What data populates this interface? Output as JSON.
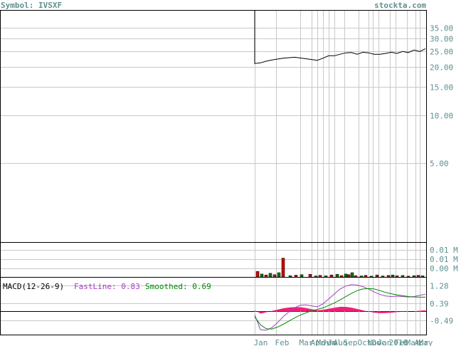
{
  "header": {
    "symbol_label": "Symbol: IVSXF",
    "site": "stockta.com"
  },
  "chart_data": [
    {
      "type": "line",
      "panel": "price",
      "title": "",
      "scale": "log",
      "y_ticks": [
        "35.00",
        "30.00",
        "25.00",
        "20.00",
        "15.00",
        "10.00",
        "5.00"
      ],
      "y_tick_values": [
        35,
        30,
        25,
        20,
        15,
        10,
        5
      ],
      "ylim": [
        1.6,
        45
      ],
      "x": [
        0,
        8,
        16,
        24,
        40,
        56,
        72,
        88,
        96,
        104,
        112,
        120,
        128,
        136,
        144,
        152,
        160,
        168,
        176,
        184,
        192,
        200,
        208,
        216,
        224,
        232,
        240
      ],
      "values": [
        21.0,
        21.2,
        21.7,
        22.1,
        22.7,
        23.0,
        22.5,
        22.0,
        22.7,
        23.5,
        23.5,
        24.0,
        24.5,
        24.6,
        24.0,
        24.7,
        24.5,
        24.0,
        24.0,
        24.3,
        24.7,
        24.3,
        25.0,
        24.6,
        25.5,
        25.0,
        26.0
      ],
      "series_color": "#000000"
    },
    {
      "type": "bar",
      "panel": "volume",
      "y_ticks": [
        "0.01 M",
        "0.01 M",
        "0.00 M"
      ],
      "ylim": [
        0,
        0.02
      ],
      "bars": [
        {
          "x": 4,
          "v": 0.0034,
          "color": "#cc0000"
        },
        {
          "x": 10,
          "v": 0.0018,
          "color": "#007700"
        },
        {
          "x": 16,
          "v": 0.0012,
          "color": "#cc0000"
        },
        {
          "x": 22,
          "v": 0.0022,
          "color": "#007700"
        },
        {
          "x": 28,
          "v": 0.0014,
          "color": "#cc0000"
        },
        {
          "x": 34,
          "v": 0.0026,
          "color": "#007700"
        },
        {
          "x": 40,
          "v": 0.0115,
          "color": "#cc0000"
        },
        {
          "x": 50,
          "v": 0.0008,
          "color": "#007700"
        },
        {
          "x": 58,
          "v": 0.0011,
          "color": "#cc0000"
        },
        {
          "x": 66,
          "v": 0.0014,
          "color": "#007700"
        },
        {
          "x": 78,
          "v": 0.0016,
          "color": "#cc0000"
        },
        {
          "x": 86,
          "v": 0.0006,
          "color": "#007700"
        },
        {
          "x": 92,
          "v": 0.001,
          "color": "#cc0000"
        },
        {
          "x": 100,
          "v": 0.0007,
          "color": "#007700"
        },
        {
          "x": 108,
          "v": 0.0012,
          "color": "#cc0000"
        },
        {
          "x": 116,
          "v": 0.0016,
          "color": "#007700"
        },
        {
          "x": 122,
          "v": 0.0008,
          "color": "#cc0000"
        },
        {
          "x": 128,
          "v": 0.0018,
          "color": "#007700"
        },
        {
          "x": 132,
          "v": 0.0014,
          "color": "#cc0000"
        },
        {
          "x": 137,
          "v": 0.0026,
          "color": "#007700"
        },
        {
          "x": 142,
          "v": 0.0008,
          "color": "#cc0000"
        },
        {
          "x": 150,
          "v": 0.0006,
          "color": "#007700"
        },
        {
          "x": 156,
          "v": 0.001,
          "color": "#cc0000"
        },
        {
          "x": 164,
          "v": 0.0005,
          "color": "#007700"
        },
        {
          "x": 172,
          "v": 0.0012,
          "color": "#cc0000"
        },
        {
          "x": 180,
          "v": 0.0006,
          "color": "#007700"
        },
        {
          "x": 188,
          "v": 0.0009,
          "color": "#cc0000"
        },
        {
          "x": 194,
          "v": 0.0012,
          "color": "#007700"
        },
        {
          "x": 200,
          "v": 0.0007,
          "color": "#cc0000"
        },
        {
          "x": 208,
          "v": 0.0009,
          "color": "#007700"
        },
        {
          "x": 216,
          "v": 0.0005,
          "color": "#cc0000"
        },
        {
          "x": 224,
          "v": 0.0008,
          "color": "#007700"
        },
        {
          "x": 230,
          "v": 0.001,
          "color": "#cc0000"
        },
        {
          "x": 236,
          "v": 0.0007,
          "color": "#007700"
        }
      ]
    },
    {
      "type": "line",
      "panel": "macd",
      "legend": {
        "label": "MACD(12-26-9)",
        "fast_label": "FastLine: 0.83",
        "smooth_label": "Smoothed: 0.69"
      },
      "y_ticks": [
        "1.28",
        "0.39",
        "-0.49"
      ],
      "y_tick_values": [
        1.28,
        0.39,
        -0.49
      ],
      "ylim": [
        -1.2,
        1.6
      ],
      "x": [
        0,
        8,
        16,
        24,
        32,
        40,
        48,
        56,
        64,
        72,
        80,
        88,
        96,
        104,
        112,
        120,
        128,
        136,
        144,
        152,
        160,
        168,
        176,
        184,
        192,
        200,
        208,
        216,
        224,
        232,
        240
      ],
      "fast": [
        -0.2,
        -0.95,
        -0.98,
        -0.85,
        -0.6,
        -0.3,
        -0.05,
        0.15,
        0.28,
        0.3,
        0.25,
        0.2,
        0.35,
        0.6,
        0.85,
        1.1,
        1.25,
        1.32,
        1.3,
        1.22,
        1.1,
        0.95,
        0.82,
        0.75,
        0.72,
        0.74,
        0.72,
        0.7,
        0.72,
        0.78,
        0.83
      ],
      "smooth": [
        -0.3,
        -0.7,
        -0.9,
        -0.92,
        -0.82,
        -0.68,
        -0.52,
        -0.36,
        -0.22,
        -0.1,
        0.0,
        0.07,
        0.15,
        0.27,
        0.4,
        0.55,
        0.72,
        0.88,
        1.02,
        1.1,
        1.12,
        1.1,
        1.02,
        0.93,
        0.86,
        0.8,
        0.76,
        0.72,
        0.7,
        0.69,
        0.69
      ],
      "fast_color": "#a040c0",
      "smooth_color": "#008800",
      "hist_color": "#ee2277"
    }
  ],
  "x_axis": {
    "labels": [
      {
        "text": "Jan",
        "x": 0
      },
      {
        "text": "Feb",
        "x": 30
      },
      {
        "text": "Mar",
        "x": 64
      },
      {
        "text": "Apr",
        "x": 80
      },
      {
        "text": "May",
        "x": 88
      },
      {
        "text": "Jun",
        "x": 96
      },
      {
        "text": "Jul",
        "x": 104
      },
      {
        "text": "Aug",
        "x": 112
      },
      {
        "text": "Sep",
        "x": 126
      },
      {
        "text": "Oct",
        "x": 146
      },
      {
        "text": "Nov",
        "x": 160
      },
      {
        "text": "Dec",
        "x": 166
      },
      {
        "text": "Jan",
        "x": 174
      },
      {
        "text": "2016",
        "x": 190
      },
      {
        "text": "Feb",
        "x": 198
      },
      {
        "text": "Mar",
        "x": 214
      },
      {
        "text": "Apr",
        "x": 226
      },
      {
        "text": "May",
        "x": 232
      }
    ]
  }
}
